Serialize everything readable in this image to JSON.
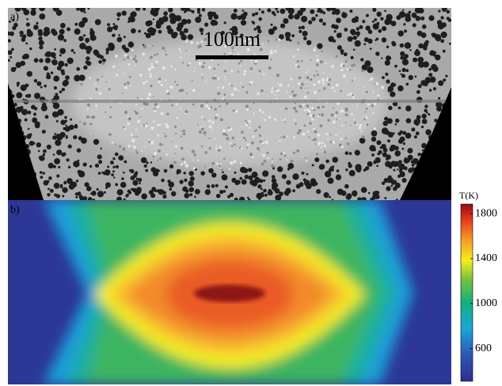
{
  "panel_a": {
    "label": "a)",
    "scale_bar": "100nm"
  },
  "panel_b": {
    "label": "b)",
    "colorbar": {
      "title": "T(K)",
      "range": [
        310,
        1885
      ],
      "ticks": [
        600,
        1000,
        1400,
        1800
      ]
    }
  }
}
